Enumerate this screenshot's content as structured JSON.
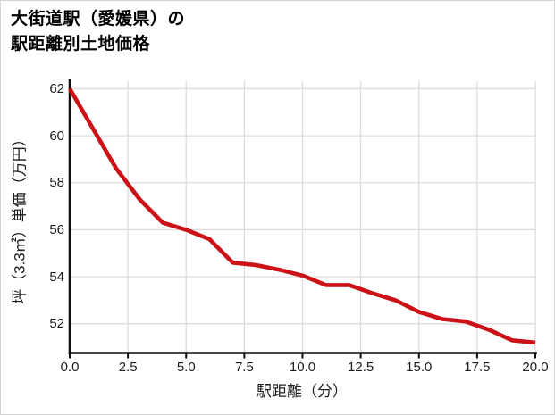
{
  "header": {
    "title_line1": "大街道駅（愛媛県）の",
    "title_line2": "駅距離別土地価格"
  },
  "chart_data": {
    "type": "line",
    "title": "大街道駅（愛媛県）の駅距離別土地価格",
    "xlabel": "駅距離（分）",
    "ylabel": "坪（3.3㎡）単価（万円）",
    "x": [
      0,
      1,
      2,
      3,
      4,
      5,
      6,
      7,
      8,
      9,
      10,
      11,
      12,
      13,
      14,
      15,
      16,
      17,
      18,
      19,
      20
    ],
    "y": [
      62.0,
      60.3,
      58.6,
      57.3,
      56.3,
      56.0,
      55.6,
      54.6,
      54.5,
      54.3,
      54.05,
      53.65,
      53.65,
      53.3,
      53.0,
      52.5,
      52.2,
      52.1,
      51.75,
      51.3,
      51.2
    ],
    "xticks": [
      0,
      2.5,
      5,
      7.5,
      10,
      12.5,
      15,
      17.5,
      20
    ],
    "xtick_labels": [
      "0.0",
      "2.5",
      "5.0",
      "7.5",
      "10.0",
      "12.5",
      "15.0",
      "17.5",
      "20.0"
    ],
    "yticks": [
      52,
      54,
      56,
      58,
      60,
      62
    ],
    "ytick_labels": [
      "52",
      "54",
      "56",
      "58",
      "60",
      "62"
    ],
    "xlim": [
      0,
      20
    ],
    "ylim": [
      50.74,
      62.32
    ],
    "grid": true,
    "legend": false,
    "line_color": "#cc1117",
    "grid_color": "#dcdcdc",
    "axis_color": "#0d0d0d"
  }
}
